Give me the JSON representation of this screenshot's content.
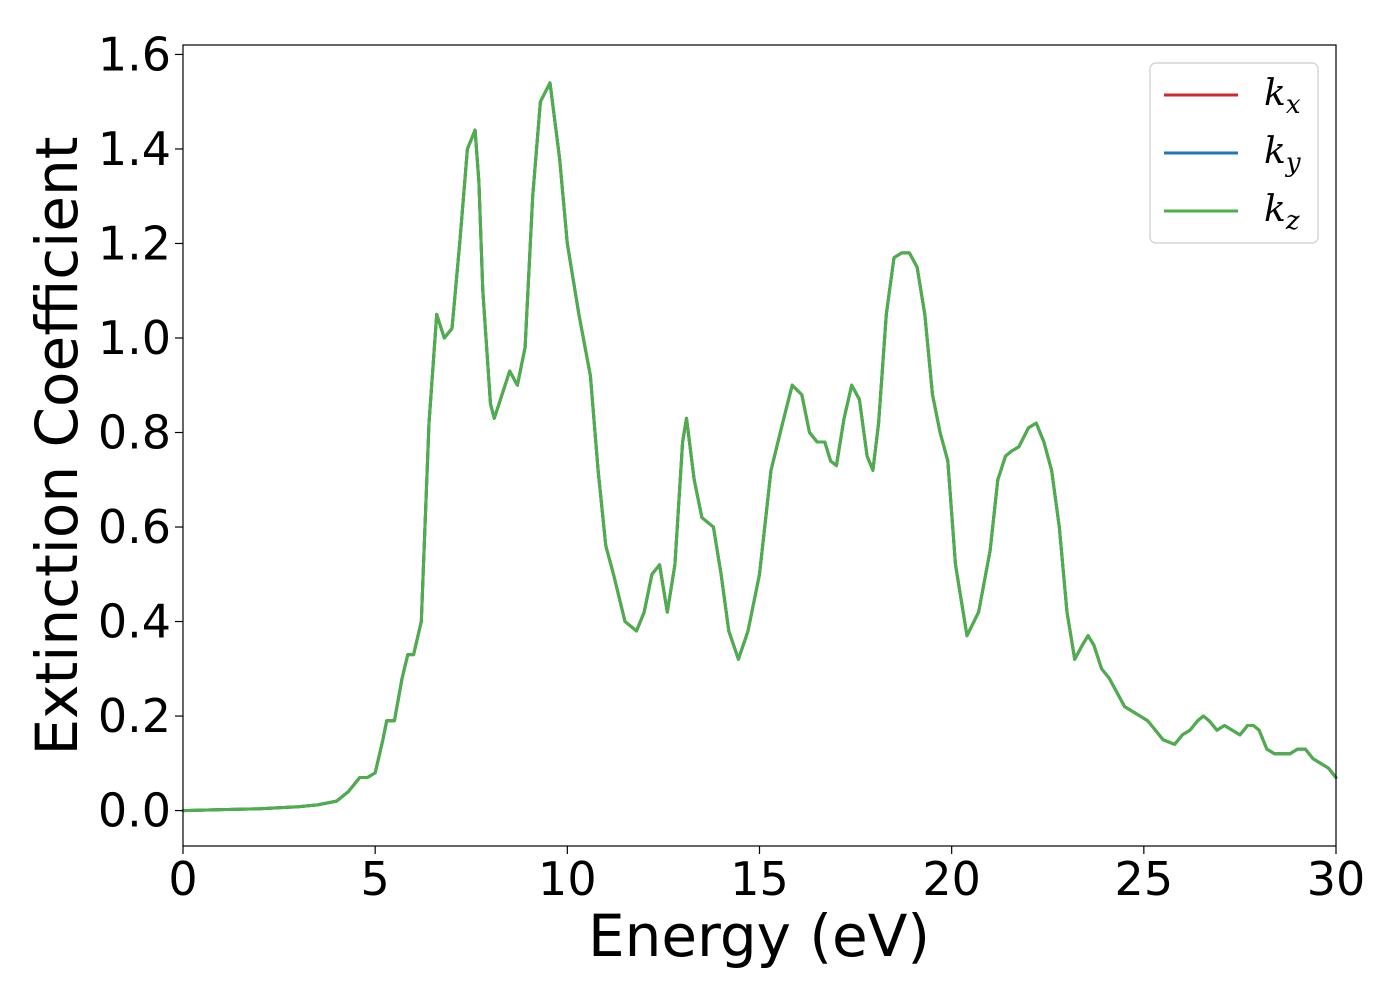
{
  "chart_data": {
    "type": "line",
    "xlabel": "Energy (eV)",
    "ylabel": "Extinction Coefficient",
    "xlim": [
      0,
      30
    ],
    "ylim": [
      -0.075,
      1.62
    ],
    "xticks": [
      0,
      5,
      10,
      15,
      20,
      25,
      30
    ],
    "xtick_labels": [
      "0",
      "5",
      "10",
      "15",
      "20",
      "25",
      "30"
    ],
    "yticks": [
      0.0,
      0.2,
      0.4,
      0.6,
      0.8,
      1.0,
      1.2,
      1.4,
      1.6
    ],
    "ytick_labels": [
      "0.0",
      "0.2",
      "0.4",
      "0.6",
      "0.8",
      "1.0",
      "1.2",
      "1.4",
      "1.6"
    ],
    "grid": false,
    "legend_position": "top-right",
    "legend": [
      {
        "base": "k",
        "sub": "x",
        "color": "#d62728"
      },
      {
        "base": "k",
        "sub": "y",
        "color": "#1f77b4"
      },
      {
        "base": "k",
        "sub": "z",
        "color": "#4daf4a"
      }
    ],
    "x": [
      0,
      1,
      2,
      3,
      3.5,
      4,
      4.3,
      4.6,
      4.8,
      5.0,
      5.2,
      5.3,
      5.5,
      5.7,
      5.85,
      6.0,
      6.2,
      6.4,
      6.6,
      6.8,
      7.0,
      7.2,
      7.4,
      7.6,
      7.7,
      7.8,
      8.0,
      8.1,
      8.3,
      8.5,
      8.7,
      8.9,
      9.1,
      9.3,
      9.55,
      9.8,
      10.0,
      10.3,
      10.6,
      10.8,
      11.0,
      11.2,
      11.5,
      11.8,
      12.0,
      12.2,
      12.4,
      12.6,
      12.8,
      13.0,
      13.1,
      13.3,
      13.5,
      13.8,
      14.0,
      14.2,
      14.45,
      14.7,
      15.0,
      15.3,
      15.6,
      15.85,
      16.1,
      16.3,
      16.5,
      16.7,
      16.85,
      17.0,
      17.2,
      17.4,
      17.6,
      17.8,
      17.95,
      18.1,
      18.3,
      18.5,
      18.7,
      18.9,
      19.1,
      19.3,
      19.5,
      19.7,
      19.9,
      20.1,
      20.4,
      20.7,
      21.0,
      21.2,
      21.4,
      21.55,
      21.75,
      22.0,
      22.2,
      22.4,
      22.6,
      22.8,
      23.0,
      23.2,
      23.4,
      23.55,
      23.7,
      23.9,
      24.1,
      24.3,
      24.5,
      24.7,
      24.9,
      25.1,
      25.3,
      25.5,
      25.8,
      26.0,
      26.2,
      26.4,
      26.55,
      26.7,
      26.9,
      27.1,
      27.3,
      27.5,
      27.7,
      27.85,
      28.0,
      28.2,
      28.4,
      28.6,
      28.8,
      29.0,
      29.2,
      29.4,
      29.6,
      29.8,
      30.0
    ],
    "series": [
      {
        "name": "kx",
        "color": "#d62728",
        "values": [
          0.0,
          0.002,
          0.004,
          0.008,
          0.012,
          0.02,
          0.04,
          0.07,
          0.07,
          0.08,
          0.15,
          0.19,
          0.19,
          0.28,
          0.33,
          0.33,
          0.4,
          0.82,
          1.05,
          1.0,
          1.02,
          1.2,
          1.4,
          1.44,
          1.33,
          1.1,
          0.86,
          0.83,
          0.88,
          0.93,
          0.9,
          0.98,
          1.3,
          1.5,
          1.54,
          1.38,
          1.2,
          1.05,
          0.92,
          0.72,
          0.56,
          0.5,
          0.4,
          0.38,
          0.42,
          0.5,
          0.52,
          0.42,
          0.52,
          0.78,
          0.83,
          0.7,
          0.62,
          0.6,
          0.5,
          0.38,
          0.32,
          0.38,
          0.5,
          0.72,
          0.82,
          0.9,
          0.88,
          0.8,
          0.78,
          0.78,
          0.74,
          0.73,
          0.83,
          0.9,
          0.87,
          0.75,
          0.72,
          0.82,
          1.05,
          1.17,
          1.18,
          1.18,
          1.15,
          1.05,
          0.88,
          0.8,
          0.74,
          0.52,
          0.37,
          0.42,
          0.55,
          0.7,
          0.75,
          0.76,
          0.77,
          0.81,
          0.82,
          0.78,
          0.72,
          0.6,
          0.42,
          0.32,
          0.35,
          0.37,
          0.35,
          0.3,
          0.28,
          0.25,
          0.22,
          0.21,
          0.2,
          0.19,
          0.17,
          0.15,
          0.14,
          0.16,
          0.17,
          0.19,
          0.2,
          0.19,
          0.17,
          0.18,
          0.17,
          0.16,
          0.18,
          0.18,
          0.17,
          0.13,
          0.12,
          0.12,
          0.12,
          0.13,
          0.13,
          0.11,
          0.1,
          0.09,
          0.07
        ]
      },
      {
        "name": "ky",
        "color": "#1f77b4",
        "values": [
          0.0,
          0.002,
          0.004,
          0.008,
          0.012,
          0.02,
          0.04,
          0.07,
          0.07,
          0.08,
          0.15,
          0.19,
          0.19,
          0.28,
          0.33,
          0.33,
          0.4,
          0.82,
          1.05,
          1.0,
          1.02,
          1.2,
          1.4,
          1.44,
          1.33,
          1.1,
          0.86,
          0.83,
          0.88,
          0.93,
          0.9,
          0.98,
          1.3,
          1.5,
          1.54,
          1.38,
          1.2,
          1.05,
          0.92,
          0.72,
          0.56,
          0.5,
          0.4,
          0.38,
          0.42,
          0.5,
          0.52,
          0.42,
          0.52,
          0.78,
          0.83,
          0.7,
          0.62,
          0.6,
          0.5,
          0.38,
          0.32,
          0.38,
          0.5,
          0.72,
          0.82,
          0.9,
          0.88,
          0.8,
          0.78,
          0.78,
          0.74,
          0.73,
          0.83,
          0.9,
          0.87,
          0.75,
          0.72,
          0.82,
          1.05,
          1.17,
          1.18,
          1.18,
          1.15,
          1.05,
          0.88,
          0.8,
          0.74,
          0.52,
          0.37,
          0.42,
          0.55,
          0.7,
          0.75,
          0.76,
          0.77,
          0.81,
          0.82,
          0.78,
          0.72,
          0.6,
          0.42,
          0.32,
          0.35,
          0.37,
          0.35,
          0.3,
          0.28,
          0.25,
          0.22,
          0.21,
          0.2,
          0.19,
          0.17,
          0.15,
          0.14,
          0.16,
          0.17,
          0.19,
          0.2,
          0.19,
          0.17,
          0.18,
          0.17,
          0.16,
          0.18,
          0.18,
          0.17,
          0.13,
          0.12,
          0.12,
          0.12,
          0.13,
          0.13,
          0.11,
          0.1,
          0.09,
          0.07
        ]
      },
      {
        "name": "kz",
        "color": "#4daf4a",
        "values": [
          0.0,
          0.002,
          0.004,
          0.008,
          0.012,
          0.02,
          0.04,
          0.07,
          0.07,
          0.08,
          0.15,
          0.19,
          0.19,
          0.28,
          0.33,
          0.33,
          0.4,
          0.82,
          1.05,
          1.0,
          1.02,
          1.2,
          1.4,
          1.44,
          1.33,
          1.1,
          0.86,
          0.83,
          0.88,
          0.93,
          0.9,
          0.98,
          1.3,
          1.5,
          1.54,
          1.38,
          1.2,
          1.05,
          0.92,
          0.72,
          0.56,
          0.5,
          0.4,
          0.38,
          0.42,
          0.5,
          0.52,
          0.42,
          0.52,
          0.78,
          0.83,
          0.7,
          0.62,
          0.6,
          0.5,
          0.38,
          0.32,
          0.38,
          0.5,
          0.72,
          0.82,
          0.9,
          0.88,
          0.8,
          0.78,
          0.78,
          0.74,
          0.73,
          0.83,
          0.9,
          0.87,
          0.75,
          0.72,
          0.82,
          1.05,
          1.17,
          1.18,
          1.18,
          1.15,
          1.05,
          0.88,
          0.8,
          0.74,
          0.52,
          0.37,
          0.42,
          0.55,
          0.7,
          0.75,
          0.76,
          0.77,
          0.81,
          0.82,
          0.78,
          0.72,
          0.6,
          0.42,
          0.32,
          0.35,
          0.37,
          0.35,
          0.3,
          0.28,
          0.25,
          0.22,
          0.21,
          0.2,
          0.19,
          0.17,
          0.15,
          0.14,
          0.16,
          0.17,
          0.19,
          0.2,
          0.19,
          0.17,
          0.18,
          0.17,
          0.16,
          0.18,
          0.18,
          0.17,
          0.13,
          0.12,
          0.12,
          0.12,
          0.13,
          0.13,
          0.11,
          0.1,
          0.09,
          0.07
        ]
      }
    ]
  }
}
